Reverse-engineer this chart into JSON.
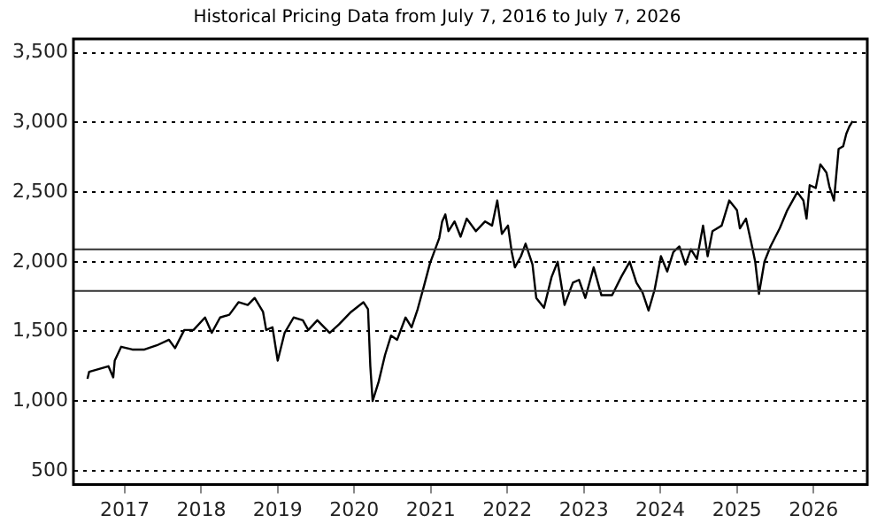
{
  "chart_data": {
    "type": "line",
    "title": "Historical Pricing Data from July 7, 2016 to July 7, 2026",
    "x": [
      "2016-07-07",
      "2016-07-15",
      "2016-10-15",
      "2016-11-07",
      "2016-11-14",
      "2016-12-15",
      "2017-02-06",
      "2017-04-05",
      "2017-06-03",
      "2017-07-31",
      "2017-08-29",
      "2017-10-12",
      "2017-11-25",
      "2018-01-19",
      "2018-02-20",
      "2018-04-01",
      "2018-05-15",
      "2018-06-28",
      "2018-08-11",
      "2018-09-13",
      "2018-10-23",
      "2018-11-07",
      "2018-12-07",
      "2019-01-01",
      "2019-02-03",
      "2019-03-18",
      "2019-05-01",
      "2019-05-27",
      "2019-07-09",
      "2019-09-06",
      "2019-10-20",
      "2019-12-17",
      "2020-02-14",
      "2020-03-07",
      "2020-03-18",
      "2020-03-29",
      "2020-04-27",
      "2020-05-27",
      "2020-06-25",
      "2020-07-24",
      "2020-09-02",
      "2020-10-01",
      "2020-10-30",
      "2020-11-28",
      "2020-12-28",
      "2021-02-10",
      "2021-02-24",
      "2021-03-11",
      "2021-03-26",
      "2021-04-24",
      "2021-05-23",
      "2021-06-21",
      "2021-08-04",
      "2021-09-17",
      "2021-10-20",
      "2021-11-14",
      "2021-12-06",
      "2022-01-04",
      "2022-01-22",
      "2022-02-06",
      "2022-03-07",
      "2022-03-29",
      "2022-05-01",
      "2022-05-19",
      "2022-06-25",
      "2022-07-31",
      "2022-08-29",
      "2022-10-01",
      "2022-11-10",
      "2022-12-09",
      "2023-01-08",
      "2023-02-17",
      "2023-03-26",
      "2023-05-16",
      "2023-06-28",
      "2023-08-08",
      "2023-09-09",
      "2023-10-08",
      "2023-11-06",
      "2023-12-05",
      "2024-01-04",
      "2024-02-03",
      "2024-03-03",
      "2024-04-01",
      "2024-04-30",
      "2024-05-26",
      "2024-06-24",
      "2024-07-23",
      "2024-08-14",
      "2024-09-06",
      "2024-10-20",
      "2024-11-25",
      "2025-01-01",
      "2025-01-15",
      "2025-02-13",
      "2025-03-14",
      "2025-03-29",
      "2025-04-16",
      "2025-05-12",
      "2025-06-10",
      "2025-07-24",
      "2025-08-29",
      "2025-10-16",
      "2025-11-14",
      "2025-11-29",
      "2025-12-14",
      "2026-01-12",
      "2026-02-03",
      "2026-03-04",
      "2026-03-18",
      "2026-04-09",
      "2026-05-01",
      "2026-05-23",
      "2026-06-07",
      "2026-06-21",
      "2026-07-07"
    ],
    "series": [
      {
        "color": "#000000",
        "values": [
          1160,
          1210,
          1250,
          1170,
          1290,
          1390,
          1370,
          1370,
          1400,
          1440,
          1380,
          1510,
          1510,
          1600,
          1490,
          1600,
          1620,
          1710,
          1690,
          1740,
          1640,
          1510,
          1530,
          1290,
          1490,
          1600,
          1580,
          1510,
          1580,
          1490,
          1550,
          1640,
          1710,
          1660,
          1250,
          1000,
          1140,
          1330,
          1470,
          1440,
          1600,
          1530,
          1660,
          1820,
          1990,
          2170,
          2290,
          2340,
          2220,
          2290,
          2180,
          2310,
          2220,
          2290,
          2260,
          2440,
          2200,
          2260,
          2070,
          1960,
          2040,
          2130,
          1980,
          1740,
          1670,
          1890,
          2000,
          1690,
          1850,
          1870,
          1740,
          1960,
          1760,
          1760,
          1890,
          2000,
          1850,
          1780,
          1650,
          1800,
          2040,
          1930,
          2070,
          2110,
          1980,
          2090,
          2020,
          2260,
          2040,
          2220,
          2260,
          2440,
          2370,
          2240,
          2310,
          2110,
          2000,
          1770,
          2000,
          2110,
          2240,
          2370,
          2500,
          2440,
          2310,
          2550,
          2530,
          2700,
          2640,
          2540,
          2440,
          2810,
          2830,
          2920,
          2970,
          3010
        ]
      }
    ],
    "xlim": [
      "2016-05-01",
      "2026-09-15"
    ],
    "xticks": [
      {
        "value": "2017-01-01",
        "label": "2017"
      },
      {
        "value": "2018-01-01",
        "label": "2018"
      },
      {
        "value": "2019-01-01",
        "label": "2019"
      },
      {
        "value": "2020-01-01",
        "label": "2020"
      },
      {
        "value": "2021-01-01",
        "label": "2021"
      },
      {
        "value": "2022-01-01",
        "label": "2022"
      },
      {
        "value": "2023-01-01",
        "label": "2023"
      },
      {
        "value": "2024-01-01",
        "label": "2024"
      },
      {
        "value": "2025-01-01",
        "label": "2025"
      },
      {
        "value": "2026-01-01",
        "label": "2026"
      }
    ],
    "ylim": [
      400,
      3600
    ],
    "yticks": [
      {
        "value": 500,
        "label": "500"
      },
      {
        "value": 1000,
        "label": "1,000"
      },
      {
        "value": 1500,
        "label": "1,500"
      },
      {
        "value": 2000,
        "label": "2,000"
      },
      {
        "value": 2500,
        "label": "2,500"
      },
      {
        "value": 3000,
        "label": "3,000"
      },
      {
        "value": 3500,
        "label": "3,500"
      }
    ],
    "grid": "y",
    "legend": false,
    "marker": "none",
    "line_style": "solid",
    "ref_lines": [
      {
        "axis": "y",
        "value": 2090,
        "color": "#333333",
        "line_style": "solid"
      },
      {
        "axis": "y",
        "value": 1790,
        "color": "#333333",
        "line_style": "solid"
      }
    ]
  }
}
